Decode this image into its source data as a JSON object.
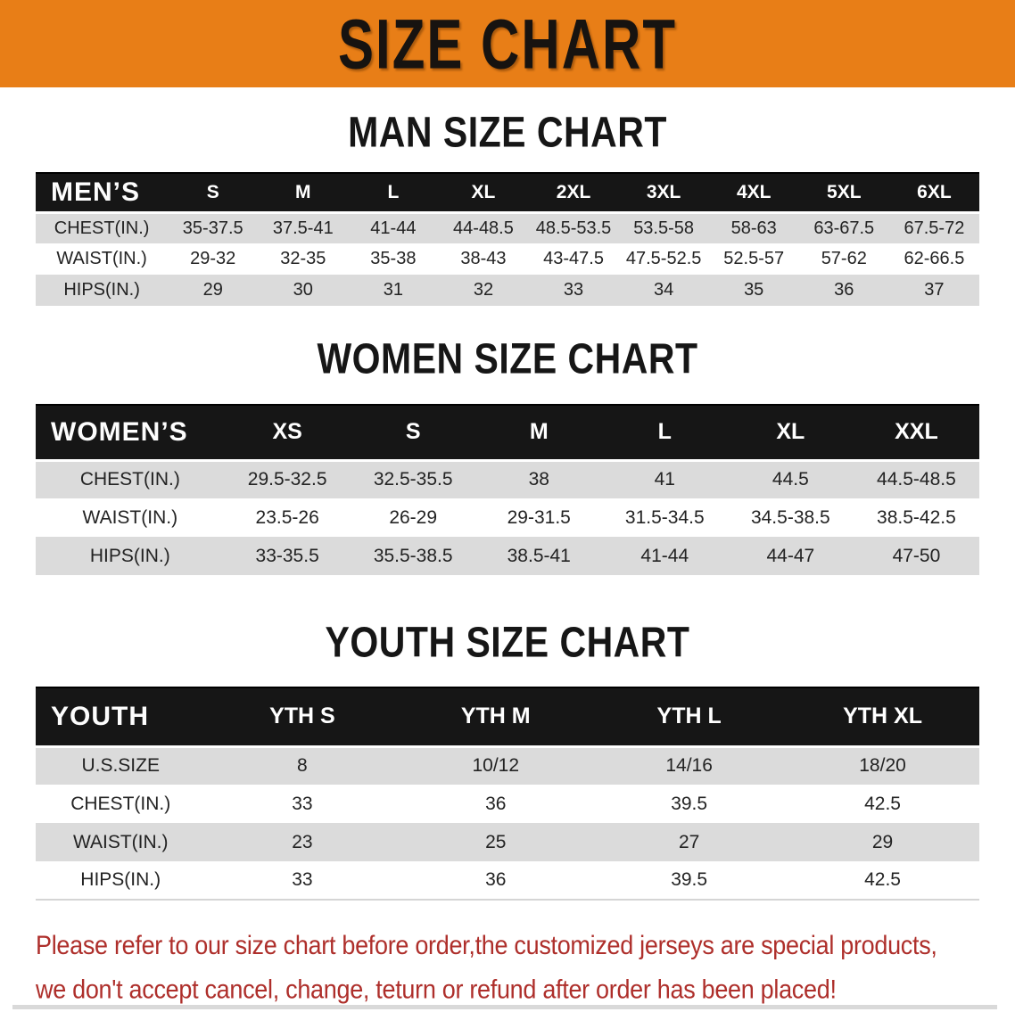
{
  "banner": {
    "title": "SIZE CHART"
  },
  "colors": {
    "banner_orange": "#E87E17",
    "table_header_black": "#161616",
    "row_gray": "#DBDBDB",
    "disclaimer_red": "#AE2F2B"
  },
  "sections": {
    "men": {
      "heading": "MAN SIZE CHART",
      "table": {
        "label": "MEN’S",
        "sizes": [
          "S",
          "M",
          "L",
          "XL",
          "2XL",
          "3XL",
          "4XL",
          "5XL",
          "6XL"
        ],
        "rows": [
          {
            "label": "CHEST(IN.)",
            "values": [
              "35-37.5",
              "37.5-41",
              "41-44",
              "44-48.5",
              "48.5-53.5",
              "53.5-58",
              "58-63",
              "63-67.5",
              "67.5-72"
            ]
          },
          {
            "label": "WAIST(IN.)",
            "values": [
              "29-32",
              "32-35",
              "35-38",
              "38-43",
              "43-47.5",
              "47.5-52.5",
              "52.5-57",
              "57-62",
              "62-66.5"
            ]
          },
          {
            "label": "HIPS(IN.)",
            "values": [
              "29",
              "30",
              "31",
              "32",
              "33",
              "34",
              "35",
              "36",
              "37"
            ]
          }
        ]
      }
    },
    "women": {
      "heading": "WOMEN SIZE CHART",
      "table": {
        "label": "WOMEN’S",
        "sizes": [
          "XS",
          "S",
          "M",
          "L",
          "XL",
          "XXL"
        ],
        "rows": [
          {
            "label": "CHEST(IN.)",
            "values": [
              "29.5-32.5",
              "32.5-35.5",
              "38",
              "41",
              "44.5",
              "44.5-48.5"
            ]
          },
          {
            "label": "WAIST(IN.)",
            "values": [
              "23.5-26",
              "26-29",
              "29-31.5",
              "31.5-34.5",
              "34.5-38.5",
              "38.5-42.5"
            ]
          },
          {
            "label": "HIPS(IN.)",
            "values": [
              "33-35.5",
              "35.5-38.5",
              "38.5-41",
              "41-44",
              "44-47",
              "47-50"
            ]
          }
        ]
      }
    },
    "youth": {
      "heading": "YOUTH SIZE CHART",
      "table": {
        "label": "YOUTH",
        "sizes": [
          "YTH S",
          "YTH M",
          "YTH L",
          "YTH XL"
        ],
        "rows": [
          {
            "label": "U.S.SIZE",
            "values": [
              "8",
              "10/12",
              "14/16",
              "18/20"
            ]
          },
          {
            "label": "CHEST(IN.)",
            "values": [
              "33",
              "36",
              "39.5",
              "42.5"
            ]
          },
          {
            "label": "WAIST(IN.)",
            "values": [
              "23",
              "25",
              "27",
              "29"
            ]
          },
          {
            "label": "HIPS(IN.)",
            "values": [
              "33",
              "36",
              "39.5",
              "42.5"
            ]
          }
        ]
      }
    }
  },
  "disclaimer": {
    "line1": "Please refer to our size chart before order,the customized jerseys are special products,",
    "line2": "we don't accept cancel, change, teturn or refund after order has been placed!"
  }
}
